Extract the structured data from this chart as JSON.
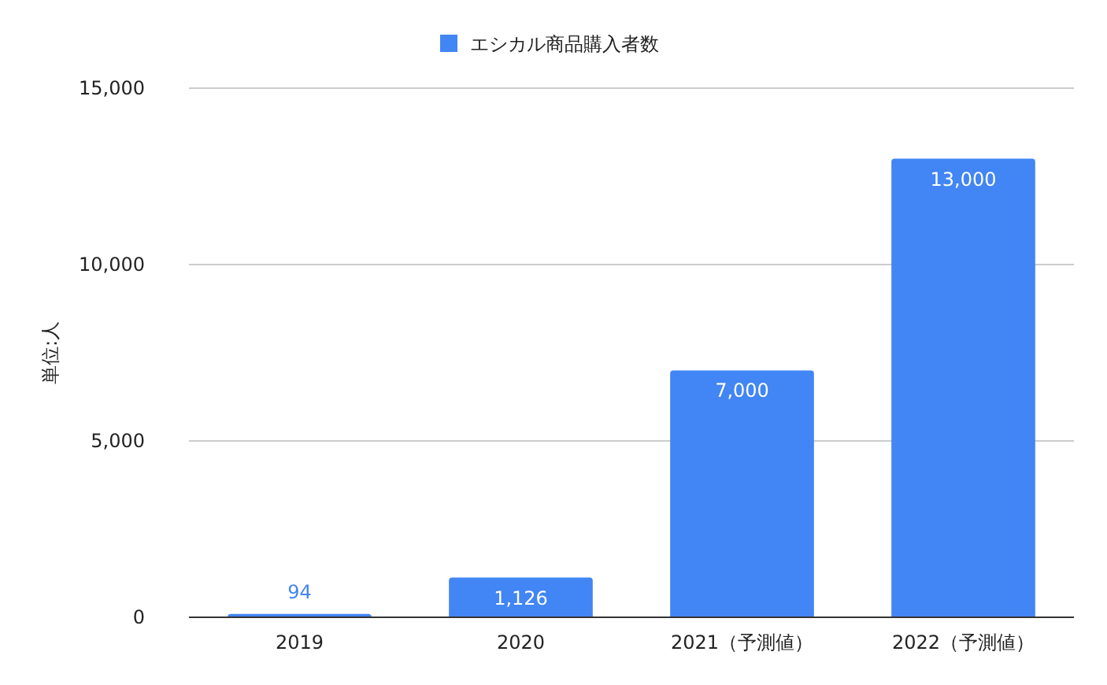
{
  "chart_data": {
    "type": "bar",
    "ylabel": "単位:人",
    "categories": [
      "2019",
      "2020",
      "2021（予測値）",
      "2022（予測値）"
    ],
    "series": [
      {
        "name": "エシカル商品購入者数",
        "color": "#4285f4",
        "values": [
          94,
          1126,
          7000,
          13000
        ],
        "value_labels": [
          "94",
          "1,126",
          "7,000",
          "13,000"
        ]
      }
    ],
    "ylim": [
      0,
      15000
    ],
    "yticks": [
      0,
      {
        "value": 5000,
        "label": "5,000"
      },
      {
        "value": 10000,
        "label": "10,000"
      },
      {
        "value": 15000,
        "label": "15,000"
      }
    ],
    "grid": "y",
    "legend": "top"
  }
}
